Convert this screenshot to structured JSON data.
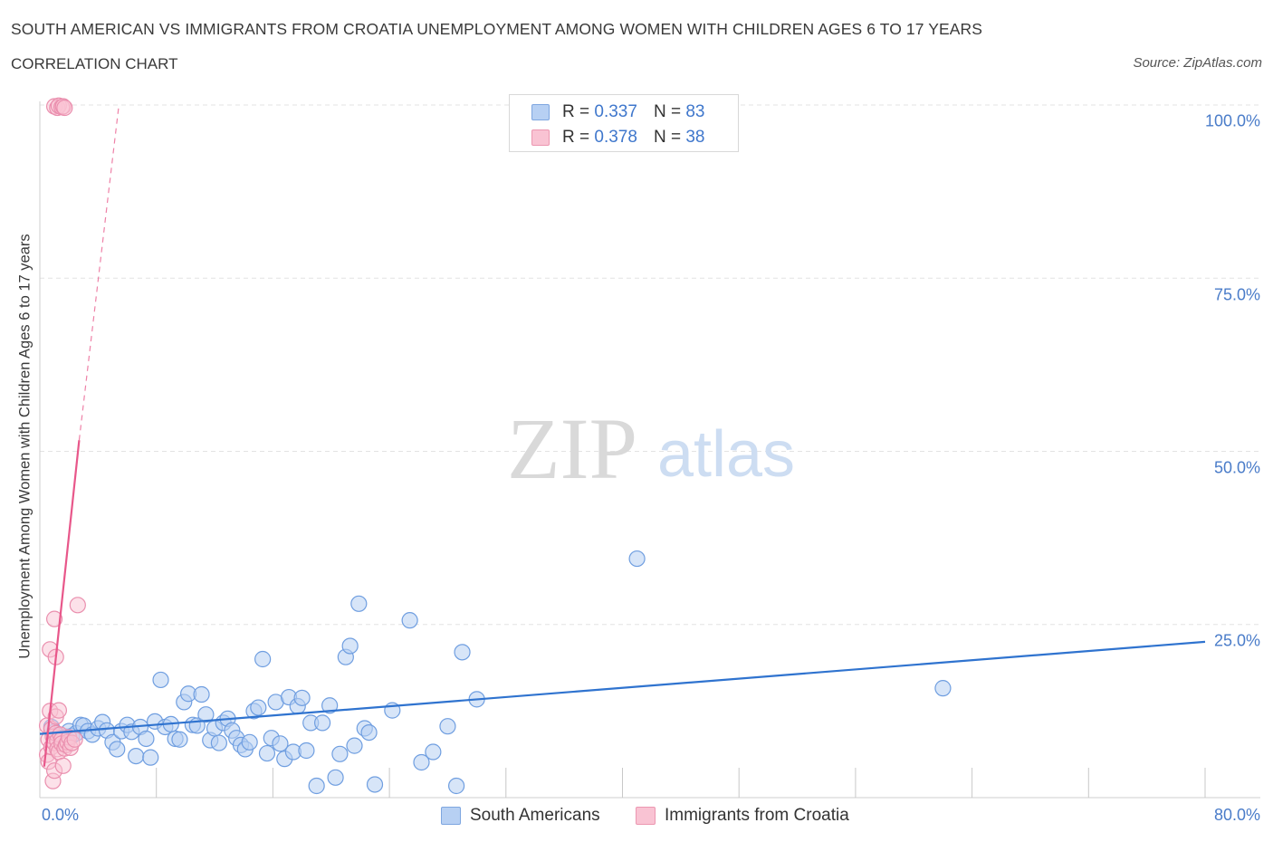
{
  "title": "SOUTH AMERICAN VS IMMIGRANTS FROM CROATIA UNEMPLOYMENT AMONG WOMEN WITH CHILDREN AGES 6 TO 17 YEARS",
  "subtitle": "CORRELATION CHART",
  "source": "Source: ZipAtlas.com",
  "watermark": {
    "zip": "ZIP",
    "atlas": "atlas"
  },
  "colors": {
    "blue_fill": "#b7d0f3",
    "blue_line": "#2f73cf",
    "pink_fill": "#f9c3d3",
    "pink_line": "#e8578a",
    "tick_text": "#4a7cc9"
  },
  "legend": {
    "rows": [
      {
        "r_label": "R =",
        "r_value": "0.337",
        "n_label": "N =",
        "n_value": "83"
      },
      {
        "r_label": "R =",
        "r_value": "0.378",
        "n_label": "N =",
        "n_value": "38"
      }
    ]
  },
  "bottom_legend": [
    "South Americans",
    "Immigrants from Croatia"
  ],
  "chart_data": {
    "type": "scatter",
    "title": "SOUTH AMERICAN VS IMMIGRANTS FROM CROATIA UNEMPLOYMENT AMONG WOMEN WITH CHILDREN AGES 6 TO 17 YEARS",
    "xlabel": "",
    "ylabel": "Unemployment Among Women with Children Ages 6 to 17 years",
    "xlim": [
      0,
      80
    ],
    "ylim": [
      0,
      100
    ],
    "x_tick_labels": [
      "0.0%",
      "80.0%"
    ],
    "y_tick_labels": [
      "100.0%",
      "75.0%",
      "50.0%",
      "25.0%"
    ],
    "y_ticks": [
      100,
      75,
      50,
      25
    ],
    "grid": true,
    "legend_position": "top-center",
    "series": [
      {
        "name": "South Americans",
        "R": 0.337,
        "N": 83,
        "trend": {
          "x": [
            0,
            80
          ],
          "y": [
            9.2,
            22.5
          ],
          "dashed_extension": false
        },
        "points": [
          [
            0.8,
            10.2
          ],
          [
            1.0,
            9.5
          ],
          [
            1.2,
            9.0
          ],
          [
            1.4,
            8.6
          ],
          [
            1.6,
            8.2
          ],
          [
            1.8,
            8.8
          ],
          [
            2.0,
            9.6
          ],
          [
            2.2,
            8.9
          ],
          [
            2.5,
            9.3
          ],
          [
            2.8,
            10.5
          ],
          [
            3.0,
            10.4
          ],
          [
            3.3,
            9.6
          ],
          [
            3.6,
            9.1
          ],
          [
            4.0,
            10.0
          ],
          [
            4.3,
            10.9
          ],
          [
            4.6,
            9.7
          ],
          [
            5.0,
            8.0
          ],
          [
            5.3,
            7.0
          ],
          [
            5.6,
            9.6
          ],
          [
            6.0,
            10.5
          ],
          [
            6.3,
            9.5
          ],
          [
            6.6,
            6.0
          ],
          [
            6.9,
            10.2
          ],
          [
            7.3,
            8.5
          ],
          [
            7.6,
            5.8
          ],
          [
            7.9,
            11.0
          ],
          [
            8.3,
            17.0
          ],
          [
            8.6,
            10.2
          ],
          [
            9.0,
            10.6
          ],
          [
            9.3,
            8.5
          ],
          [
            9.6,
            8.4
          ],
          [
            9.9,
            13.8
          ],
          [
            10.2,
            15.0
          ],
          [
            10.5,
            10.5
          ],
          [
            10.8,
            10.4
          ],
          [
            11.1,
            14.9
          ],
          [
            11.4,
            12.0
          ],
          [
            11.7,
            8.3
          ],
          [
            12.0,
            10.0
          ],
          [
            12.3,
            7.9
          ],
          [
            12.6,
            10.8
          ],
          [
            12.9,
            11.4
          ],
          [
            13.2,
            9.7
          ],
          [
            13.5,
            8.6
          ],
          [
            13.8,
            7.6
          ],
          [
            14.1,
            7.0
          ],
          [
            14.4,
            8.0
          ],
          [
            14.7,
            12.5
          ],
          [
            15.0,
            13.0
          ],
          [
            15.3,
            20.0
          ],
          [
            15.6,
            6.4
          ],
          [
            15.9,
            8.6
          ],
          [
            16.2,
            13.8
          ],
          [
            16.5,
            7.8
          ],
          [
            16.8,
            5.6
          ],
          [
            17.1,
            14.5
          ],
          [
            17.4,
            6.6
          ],
          [
            17.7,
            13.2
          ],
          [
            18.0,
            14.4
          ],
          [
            18.3,
            6.8
          ],
          [
            18.6,
            10.8
          ],
          [
            19.0,
            1.7
          ],
          [
            19.4,
            10.8
          ],
          [
            19.9,
            13.3
          ],
          [
            20.3,
            2.9
          ],
          [
            20.6,
            6.3
          ],
          [
            21.0,
            20.3
          ],
          [
            21.3,
            21.9
          ],
          [
            21.6,
            7.5
          ],
          [
            21.9,
            28.0
          ],
          [
            22.3,
            10.0
          ],
          [
            22.6,
            9.4
          ],
          [
            23.0,
            1.9
          ],
          [
            24.2,
            12.6
          ],
          [
            25.4,
            25.6
          ],
          [
            26.2,
            5.1
          ],
          [
            27.0,
            6.6
          ],
          [
            28.0,
            10.3
          ],
          [
            28.6,
            1.7
          ],
          [
            29.0,
            21.0
          ],
          [
            30.0,
            14.2
          ],
          [
            41.0,
            34.5
          ],
          [
            62.0,
            15.8
          ]
        ]
      },
      {
        "name": "Immigrants from Croatia",
        "R": 0.378,
        "N": 38,
        "trend": {
          "x": [
            0.3,
            2.7
          ],
          "y": [
            4.5,
            51.6
          ],
          "dashed_extension_to": [
            5.4,
            99.5
          ]
        },
        "points": [
          [
            0.5,
            10.4
          ],
          [
            0.5,
            6.2
          ],
          [
            0.6,
            5.2
          ],
          [
            0.6,
            8.4
          ],
          [
            0.7,
            21.4
          ],
          [
            0.7,
            12.5
          ],
          [
            0.8,
            9.9
          ],
          [
            0.8,
            7.3
          ],
          [
            0.9,
            8.8
          ],
          [
            0.9,
            2.4
          ],
          [
            1.0,
            25.8
          ],
          [
            1.0,
            7.9
          ],
          [
            1.0,
            3.9
          ],
          [
            1.1,
            11.7
          ],
          [
            1.1,
            9.3
          ],
          [
            1.1,
            20.3
          ],
          [
            1.2,
            8.2
          ],
          [
            1.2,
            7.0
          ],
          [
            1.3,
            12.6
          ],
          [
            1.3,
            6.6
          ],
          [
            1.4,
            9.1
          ],
          [
            1.5,
            8.4
          ],
          [
            1.5,
            7.8
          ],
          [
            1.6,
            4.6
          ],
          [
            1.7,
            7.1
          ],
          [
            1.8,
            7.6
          ],
          [
            1.9,
            8.0
          ],
          [
            2.0,
            8.7
          ],
          [
            2.1,
            7.2
          ],
          [
            2.2,
            7.9
          ],
          [
            2.4,
            8.4
          ],
          [
            2.6,
            27.8
          ],
          [
            1.0,
            99.8
          ],
          [
            1.2,
            99.6
          ],
          [
            1.3,
            99.9
          ],
          [
            1.5,
            99.7
          ],
          [
            1.6,
            99.8
          ],
          [
            1.7,
            99.6
          ]
        ]
      }
    ]
  }
}
